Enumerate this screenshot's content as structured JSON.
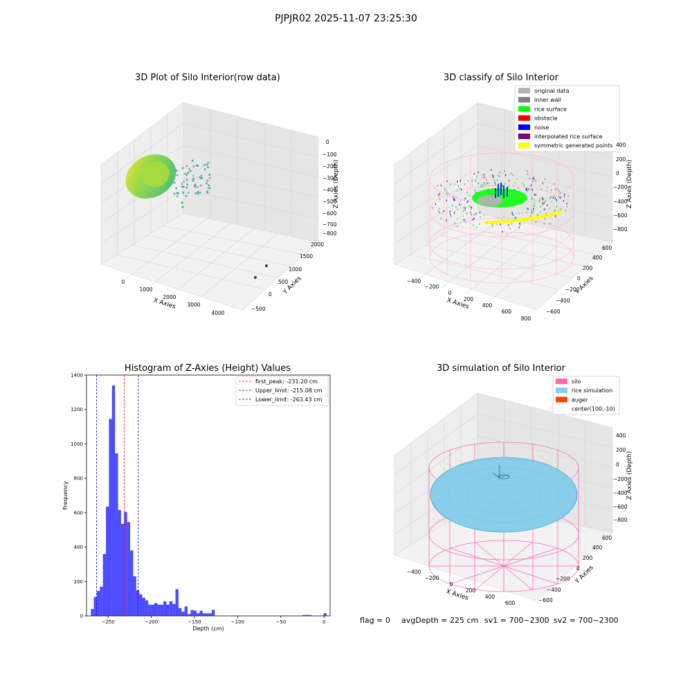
{
  "suptitle": "PJPJR02 2025-11-07 23:25:30",
  "panels": {
    "raw": {
      "title": "3D Plot of Silo Interior(row data)",
      "xlabel": "X Axies",
      "ylabel": "Y Axies",
      "zlabel": "Z Axies (Depth)",
      "xticks": [
        "0",
        "1000",
        "2000",
        "3000",
        "4000"
      ],
      "yticks": [
        "−500",
        "0",
        "500",
        "1000",
        "1500",
        "2000"
      ],
      "zticks": [
        "0",
        "−100",
        "−200",
        "−300",
        "−400",
        "−500",
        "−600",
        "−700",
        "−800"
      ]
    },
    "classify": {
      "title": "3D classify of Silo Interior",
      "xlabel": "X Axies",
      "ylabel": "Y Axies",
      "zlabel": "Z Axies (Depth)",
      "xticks": [
        "−400",
        "−200",
        "0",
        "200",
        "400",
        "600",
        "800"
      ],
      "yticks": [
        "−600",
        "−400",
        "−200",
        "0",
        "200",
        "400",
        "600"
      ],
      "zticks": [
        "400",
        "200",
        "0",
        "−200",
        "−400",
        "−600",
        "−800"
      ],
      "legend": [
        {
          "label": "original data",
          "color": "#b3b3b3"
        },
        {
          "label": "inner wall",
          "color": "#808080"
        },
        {
          "label": "rice surface",
          "color": "#00ff00"
        },
        {
          "label": "obstacle",
          "color": "#ff0000"
        },
        {
          "label": "noise",
          "color": "#0000ff"
        },
        {
          "label": "interpolated rice surface",
          "color": "#800080"
        },
        {
          "label": "symmetric generated points",
          "color": "#ffff00"
        }
      ]
    },
    "sim": {
      "title": "3D simulation of Silo Interior",
      "xlabel": "X Axies",
      "ylabel": "Y Axies",
      "zlabel": "Z Axies (Depth)",
      "xticks": [
        "−400",
        "−200",
        "0",
        "200",
        "400",
        "600"
      ],
      "yticks": [
        "−600",
        "−400",
        "−200",
        "0",
        "200",
        "400",
        "600"
      ],
      "zticks": [
        "400",
        "200",
        "0",
        "−200",
        "−400",
        "−600",
        "−800"
      ],
      "legend": [
        {
          "label": "silo",
          "color": "#ff69b4"
        },
        {
          "label": "rice simulation",
          "color": "#87ceeb"
        },
        {
          "label": "auger",
          "color": "#ff4500"
        },
        {
          "label": "center(100,-10)",
          "color": null
        }
      ]
    }
  },
  "chart_data": {
    "type": "bar",
    "title": "Histogram of Z-Axies (Height) Values",
    "xlabel": "Depth (cm)",
    "ylabel": "Frequency",
    "xlim": [
      -275,
      7
    ],
    "ylim": [
      0,
      1400
    ],
    "xticks": [
      -250,
      -200,
      -150,
      -100,
      -50,
      0
    ],
    "yticks": [
      0,
      200,
      400,
      600,
      800,
      1000,
      1200,
      1400
    ],
    "bin_width": 3.5,
    "bin_starts": [
      -270,
      -266.5,
      -263,
      -259.5,
      -256,
      -252.5,
      -249,
      -245.5,
      -242,
      -238.5,
      -235,
      -231.5,
      -228,
      -224.5,
      -221,
      -217.5,
      -214,
      -210.5,
      -207,
      -203.5,
      -200,
      -196.5,
      -193,
      -189.5,
      -186,
      -182.5,
      -179,
      -175.5,
      -172,
      -168.5,
      -165,
      -161.5,
      -158,
      -154.5,
      -151,
      -147.5,
      -144,
      -140.5,
      -137,
      -133.5,
      -130,
      -126.5,
      -123,
      -119.5,
      -116,
      -112.5,
      -109,
      -105.5,
      -102,
      -98.5,
      -95,
      -91.5,
      -88,
      -84.5,
      -81,
      -77.5,
      -74,
      -70.5,
      -67,
      -63.5,
      -60,
      -56.5,
      -53,
      -49.5,
      -46,
      -42.5,
      -39,
      -35.5,
      -32,
      -28.5,
      -25,
      -21.5,
      -18,
      -14.5,
      -11,
      -7.5,
      -4,
      -0.5
    ],
    "values": [
      40,
      110,
      145,
      170,
      360,
      635,
      1145,
      1340,
      945,
      615,
      535,
      605,
      545,
      380,
      230,
      150,
      125,
      105,
      90,
      65,
      65,
      75,
      65,
      65,
      85,
      65,
      85,
      70,
      155,
      45,
      25,
      55,
      10,
      35,
      30,
      15,
      30,
      15,
      15,
      15,
      35,
      0,
      0,
      0,
      0,
      0,
      0,
      0,
      0,
      0,
      0,
      0,
      0,
      0,
      0,
      0,
      0,
      0,
      0,
      0,
      0,
      0,
      0,
      0,
      0,
      0,
      0,
      0,
      0,
      0,
      5,
      5,
      5,
      0,
      0,
      0,
      0,
      15
    ],
    "bar_color": "#0000ff",
    "vlines": [
      {
        "label": "first_peak: -231.20 cm",
        "x": -231.2,
        "color": "#ff0000"
      },
      {
        "label": "Upper_limit: -215.08 cm",
        "x": -215.08,
        "color": "#0000ff"
      },
      {
        "label": "Lower_limit: -263.43 cm",
        "x": -263.43,
        "color": "#0000ff"
      }
    ],
    "legend_loc": "upper right"
  },
  "footer": {
    "flag": "flag = 0",
    "avg": "avgDepth = 225 cm",
    "sv1": "sv1 = 700~2300",
    "sv2": "sv2 = 700~2300"
  }
}
